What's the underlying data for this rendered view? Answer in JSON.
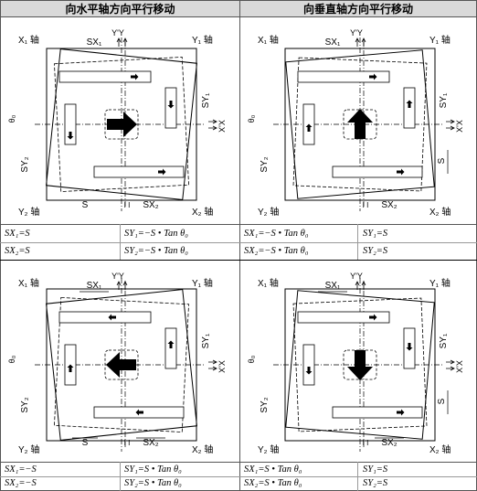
{
  "headers": [
    "向水平轴方向平行移动",
    "向垂直轴方向平行移动"
  ],
  "labels": {
    "x1": "X₁ 轴",
    "y1": "Y₁ 轴",
    "x2": "X₂ 轴",
    "y2": "Y₂ 轴",
    "sx1": "SX₁",
    "sx2": "SX₂",
    "sy1": "SY₁",
    "sy2": "SY₂",
    "s": "S",
    "yy": "Y'Y",
    "xx": "X'X",
    "theta": "θ₀",
    "ii": "I I"
  },
  "formulas": {
    "p1": [
      "SX₁=S",
      "SX₂=S",
      "SY₁=−S • Tan θ₀",
      "SY₂=−S • Tan θ₀"
    ],
    "p2": [
      "SX₁=−S • Tan θ₀",
      "SX₂=−S • Tan θ₀",
      "SY₁=S",
      "SY₂=S"
    ],
    "p3": [
      "SX₁=−S",
      "SX₂=−S",
      "SY₁=S • Tan θ₀",
      "SY₂=S • Tan θ₀"
    ],
    "p4": [
      "SX₁=S • Tan θ₀",
      "SX₂=S • Tan θ₀",
      "SY₁=S",
      "SY₂=S"
    ]
  },
  "panels": [
    {
      "id": "p1",
      "bigArrow": "right",
      "tilt": 6
    },
    {
      "id": "p2",
      "bigArrow": "up",
      "tilt": -5
    },
    {
      "id": "p3",
      "bigArrow": "left",
      "tilt": -6
    },
    {
      "id": "p4",
      "bigArrow": "down",
      "tilt": 5
    }
  ]
}
